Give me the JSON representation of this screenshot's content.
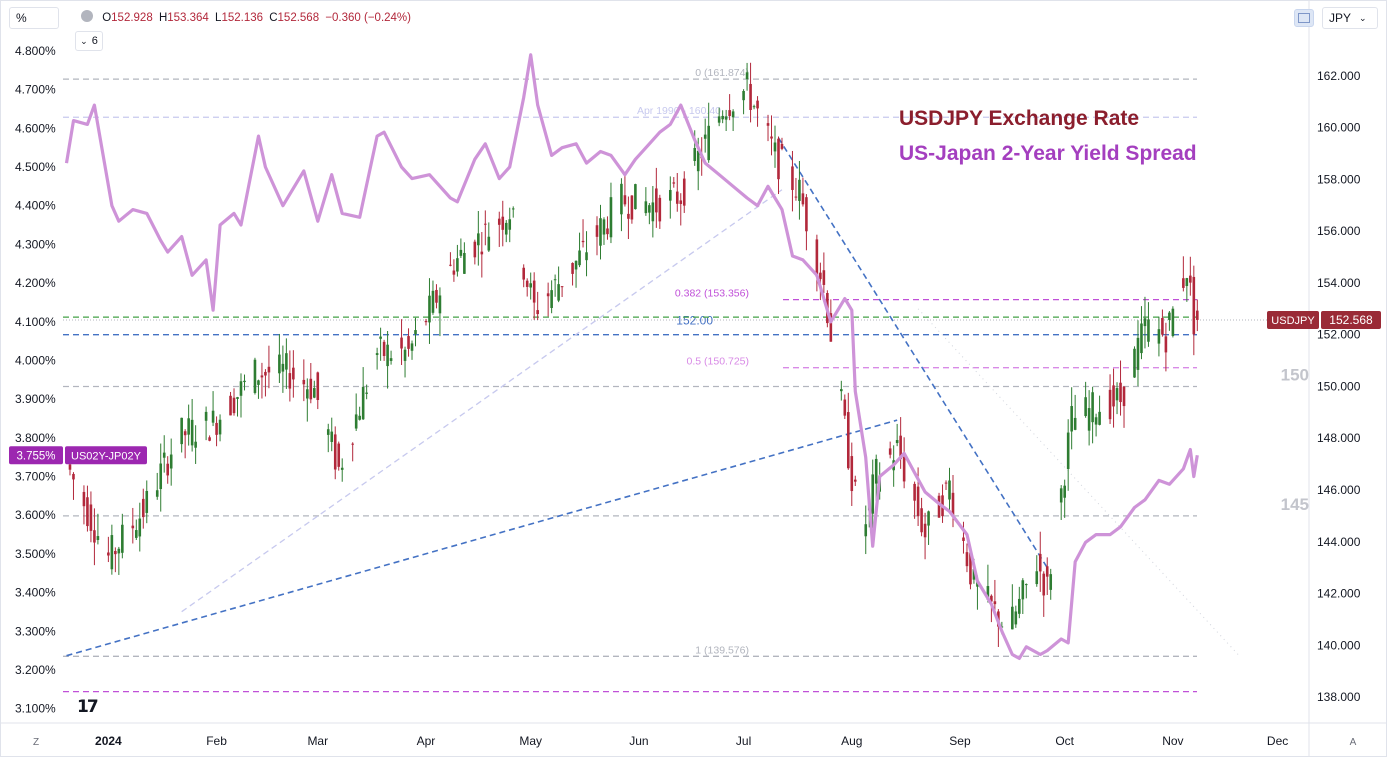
{
  "toolbar": {
    "scale_label": "%",
    "currency_label": "JPY",
    "indicator_count": "6",
    "ohlc": [
      {
        "label": "O",
        "value": "152.928"
      },
      {
        "label": "H",
        "value": "153.364"
      },
      {
        "label": "L",
        "value": "152.136"
      },
      {
        "label": "C",
        "value": "152.568"
      },
      {
        "label": "",
        "value": "−0.360 (−0.24%)"
      }
    ],
    "auto_left": "Z",
    "auto_right": "A",
    "logo_text": "17"
  },
  "colors": {
    "candle_up": "#2e7d32",
    "candle_down": "#b2283b",
    "spread_line": "#ce93d8",
    "title_fx": "#8b1e2d",
    "title_spread": "#a43fbf",
    "fib_line": "#c050d8",
    "green_line": "#43a047",
    "blue_line": "#4472c4",
    "grey_line": "#b2b5be",
    "price_badge": "#9a2a36",
    "spread_badge": "#9c27b0"
  },
  "chart_data": {
    "type": "candlestick",
    "legend": [
      {
        "name": "USDJPY Exchange Rate",
        "color": "#8b1e2d"
      },
      {
        "name": "US-Japan 2-Year Yield Spread",
        "color": "#a43fbf"
      }
    ],
    "x_axis": {
      "tick_labels": [
        "2024",
        "Feb",
        "Mar",
        "Apr",
        "May",
        "Jun",
        "Jul",
        "Aug",
        "Sep",
        "Oct",
        "Nov",
        "Dec"
      ],
      "range": [
        "2023-12-19",
        "2024-12-10"
      ]
    },
    "right_axis": {
      "range": [
        137,
        163.5
      ],
      "ticks": [
        "138.000",
        "140.000",
        "142.000",
        "144.000",
        "146.000",
        "148.000",
        "150.000",
        "152.000",
        "154.000",
        "156.000",
        "158.000",
        "160.000",
        "162.000"
      ],
      "last_value": "152.568",
      "last_value_label": "USDJPY"
    },
    "left_axis": {
      "range": [
        3.063,
        4.836
      ],
      "ticks": [
        "3.100%",
        "3.200%",
        "3.300%",
        "3.400%",
        "3.500%",
        "3.600%",
        "3.700%",
        "3.800%",
        "3.900%",
        "4.000%",
        "4.100%",
        "4.200%",
        "4.300%",
        "4.400%",
        "4.500%",
        "4.600%",
        "4.700%",
        "4.800%"
      ],
      "last_value": "3.755%",
      "last_value_label": "US02Y-JP02Y"
    },
    "series": [
      {
        "name": "USDJPY Exchange Rate",
        "type": "candlestick",
        "axis": "right",
        "points": [
          [
            "2023-12-21",
            142.2,
            147.0
          ],
          [
            "2024-01-02",
            141.0,
            143.4
          ],
          [
            "2024-01-12",
            144.3,
            145.2
          ],
          [
            "2024-01-22",
            147.8,
            148.1
          ],
          [
            "2024-02-01",
            146.5,
            148.6
          ],
          [
            "2024-02-13",
            149.9,
            150.5
          ],
          [
            "2024-02-22",
            150.2,
            150.6
          ],
          [
            "2024-03-01",
            150.1,
            149.9
          ],
          [
            "2024-03-08",
            148.7,
            146.8
          ],
          [
            "2024-03-19",
            150.0,
            151.3
          ],
          [
            "2024-03-28",
            151.4,
            151.3
          ],
          [
            "2024-04-10",
            153.2,
            154.8
          ],
          [
            "2024-04-26",
            158.4,
            156.8
          ],
          [
            "2024-05-03",
            152.8,
            153.0
          ],
          [
            "2024-05-14",
            156.5,
            154.6
          ],
          [
            "2024-05-28",
            157.1,
            157.2
          ],
          [
            "2024-06-07",
            156.4,
            157.0
          ],
          [
            "2024-06-14",
            157.5,
            157.4
          ],
          [
            "2024-06-26",
            159.7,
            160.8
          ],
          [
            "2024-07-03",
            161.7,
            161.5
          ],
          [
            "2024-07-11",
            161.5,
            158.9
          ],
          [
            "2024-07-18",
            157.4,
            157.5
          ],
          [
            "2024-07-25",
            152.6,
            153.9
          ],
          [
            "2024-08-02",
            149.4,
            146.5
          ],
          [
            "2024-08-05",
            144.0,
            144.2
          ],
          [
            "2024-08-09",
            146.6,
            146.6
          ],
          [
            "2024-08-15",
            149.2,
            147.6
          ],
          [
            "2024-08-23",
            144.4,
            144.3
          ],
          [
            "2024-08-30",
            146.2,
            146.2
          ],
          [
            "2024-09-06",
            142.3,
            142.3
          ],
          [
            "2024-09-16",
            140.6,
            140.6
          ],
          [
            "2024-09-24",
            143.2,
            143.2
          ],
          [
            "2024-09-27",
            142.2,
            142.2
          ],
          [
            "2024-10-04",
            148.7,
            148.7
          ],
          [
            "2024-10-11",
            149.2,
            149.2
          ],
          [
            "2024-10-18",
            149.5,
            149.5
          ],
          [
            "2024-10-25",
            152.3,
            152.3
          ],
          [
            "2024-10-31",
            152.0,
            152.0
          ],
          [
            "2024-11-06",
            154.6,
            154.6
          ],
          [
            "2024-11-08",
            152.568,
            152.568
          ]
        ],
        "column_meaning": [
          "date",
          "open",
          "close"
        ]
      },
      {
        "name": "US-Japan 2-Year Yield Spread",
        "type": "line",
        "axis": "left",
        "points": [
          [
            "2023-12-20",
            4.51
          ],
          [
            "2023-12-22",
            4.62
          ],
          [
            "2023-12-26",
            4.61
          ],
          [
            "2023-12-28",
            4.66
          ],
          [
            "2024-01-02",
            4.4
          ],
          [
            "2024-01-04",
            4.36
          ],
          [
            "2024-01-08",
            4.39
          ],
          [
            "2024-01-12",
            4.38
          ],
          [
            "2024-01-16",
            4.31
          ],
          [
            "2024-01-18",
            4.28
          ],
          [
            "2024-01-22",
            4.32
          ],
          [
            "2024-01-25",
            4.22
          ],
          [
            "2024-01-29",
            4.26
          ],
          [
            "2024-01-31",
            4.13
          ],
          [
            "2024-02-02",
            4.35
          ],
          [
            "2024-02-06",
            4.38
          ],
          [
            "2024-02-08",
            4.35
          ],
          [
            "2024-02-13",
            4.58
          ],
          [
            "2024-02-15",
            4.5
          ],
          [
            "2024-02-20",
            4.4
          ],
          [
            "2024-02-26",
            4.49
          ],
          [
            "2024-03-01",
            4.36
          ],
          [
            "2024-03-05",
            4.48
          ],
          [
            "2024-03-08",
            4.38
          ],
          [
            "2024-03-13",
            4.37
          ],
          [
            "2024-03-18",
            4.58
          ],
          [
            "2024-03-20",
            4.59
          ],
          [
            "2024-03-25",
            4.5
          ],
          [
            "2024-03-28",
            4.47
          ],
          [
            "2024-04-02",
            4.48
          ],
          [
            "2024-04-08",
            4.42
          ],
          [
            "2024-04-10",
            4.41
          ],
          [
            "2024-04-15",
            4.52
          ],
          [
            "2024-04-18",
            4.56
          ],
          [
            "2024-04-22",
            4.47
          ],
          [
            "2024-04-25",
            4.5
          ],
          [
            "2024-04-29",
            4.68
          ],
          [
            "2024-05-01",
            4.79
          ],
          [
            "2024-05-03",
            4.66
          ],
          [
            "2024-05-07",
            4.53
          ],
          [
            "2024-05-10",
            4.55
          ],
          [
            "2024-05-14",
            4.56
          ],
          [
            "2024-05-17",
            4.51
          ],
          [
            "2024-05-21",
            4.54
          ],
          [
            "2024-05-24",
            4.53
          ],
          [
            "2024-05-28",
            4.48
          ],
          [
            "2024-05-31",
            4.52
          ],
          [
            "2024-06-04",
            4.56
          ],
          [
            "2024-06-07",
            4.59
          ],
          [
            "2024-06-10",
            4.61
          ],
          [
            "2024-06-13",
            4.66
          ],
          [
            "2024-06-17",
            4.57
          ],
          [
            "2024-06-20",
            4.51
          ],
          [
            "2024-06-24",
            4.48
          ],
          [
            "2024-06-28",
            4.45
          ],
          [
            "2024-07-02",
            4.42
          ],
          [
            "2024-07-05",
            4.4
          ],
          [
            "2024-07-08",
            4.45
          ],
          [
            "2024-07-10",
            4.42
          ],
          [
            "2024-07-12",
            4.39
          ],
          [
            "2024-07-15",
            4.27
          ],
          [
            "2024-07-18",
            4.26
          ],
          [
            "2024-07-22",
            4.22
          ],
          [
            "2024-07-26",
            4.1
          ],
          [
            "2024-07-30",
            4.16
          ],
          [
            "2024-08-01",
            4.13
          ],
          [
            "2024-08-02",
            3.92
          ],
          [
            "2024-08-05",
            3.75
          ],
          [
            "2024-08-07",
            3.52
          ],
          [
            "2024-08-09",
            3.7
          ],
          [
            "2024-08-13",
            3.73
          ],
          [
            "2024-08-16",
            3.76
          ],
          [
            "2024-08-19",
            3.71
          ],
          [
            "2024-08-22",
            3.66
          ],
          [
            "2024-08-26",
            3.63
          ],
          [
            "2024-08-29",
            3.61
          ],
          [
            "2024-09-03",
            3.55
          ],
          [
            "2024-09-06",
            3.43
          ],
          [
            "2024-09-10",
            3.37
          ],
          [
            "2024-09-13",
            3.3
          ],
          [
            "2024-09-16",
            3.24
          ],
          [
            "2024-09-18",
            3.23
          ],
          [
            "2024-09-20",
            3.26
          ],
          [
            "2024-09-24",
            3.24
          ],
          [
            "2024-09-26",
            3.25
          ],
          [
            "2024-09-30",
            3.28
          ],
          [
            "2024-10-02",
            3.27
          ],
          [
            "2024-10-04",
            3.48
          ],
          [
            "2024-10-07",
            3.53
          ],
          [
            "2024-10-10",
            3.55
          ],
          [
            "2024-10-14",
            3.55
          ],
          [
            "2024-10-17",
            3.57
          ],
          [
            "2024-10-21",
            3.62
          ],
          [
            "2024-10-24",
            3.64
          ],
          [
            "2024-10-28",
            3.69
          ],
          [
            "2024-10-31",
            3.68
          ],
          [
            "2024-11-04",
            3.72
          ],
          [
            "2024-11-06",
            3.77
          ],
          [
            "2024-11-07",
            3.7
          ],
          [
            "2024-11-08",
            3.755
          ]
        ],
        "column_meaning": [
          "date",
          "value"
        ]
      }
    ],
    "annotations": [
      {
        "kind": "hline",
        "axis": "right",
        "value": 161.874,
        "label": "0 (161.874)",
        "color": "#b2b5be"
      },
      {
        "kind": "hline",
        "axis": "right",
        "value": 160.4,
        "label": "Apr 1990 - 160.40",
        "color": "#c7c9ee"
      },
      {
        "kind": "hline",
        "axis": "right",
        "value": 153.356,
        "label": "0.382 (153.356)",
        "color": "#c050d8"
      },
      {
        "kind": "hline",
        "axis": "right",
        "value": 152.0,
        "label": "152.00",
        "color": "#4472c4"
      },
      {
        "kind": "hline",
        "axis": "right",
        "value": 150.725,
        "label": "0.5 (150.725)",
        "color": "#d88ae6"
      },
      {
        "kind": "hline",
        "axis": "right",
        "value": 150.0,
        "label": "150",
        "color": "#b2b5be"
      },
      {
        "kind": "hline",
        "axis": "right",
        "value": 145.0,
        "label": "145",
        "color": "#b2b5be"
      },
      {
        "kind": "hline",
        "axis": "right",
        "value": 139.576,
        "label": "1 (139.576)",
        "color": "#b2b5be"
      },
      {
        "kind": "hline",
        "axis": "left",
        "value": 4.112,
        "label": "",
        "color": "#43a047"
      },
      {
        "kind": "hline",
        "axis": "left",
        "value": 3.144,
        "label": "",
        "color": "#c050d8"
      }
    ]
  }
}
